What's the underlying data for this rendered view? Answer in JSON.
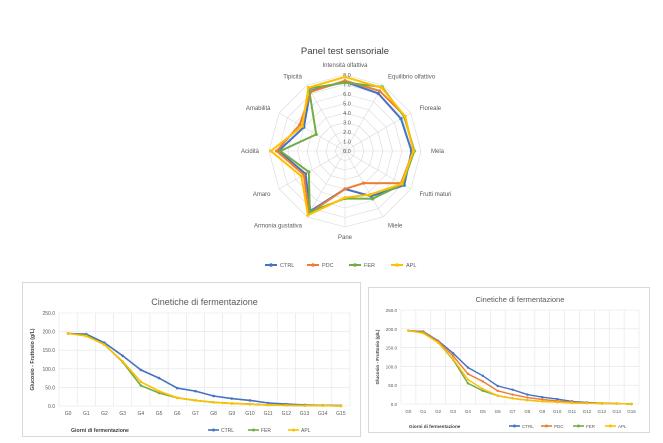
{
  "chart_data": [
    {
      "type": "radar",
      "title": "Panel test sensoriale",
      "categories": [
        "Intensità olfattiva",
        "Equilibrio olfattivo",
        "Floreale",
        "Mela",
        "Frutti maturi",
        "Miele",
        "Pane",
        "Armonia gustativa",
        "Amaro",
        "Acidità",
        "Amabilità",
        "Tipicità"
      ],
      "ticks": [
        "0.0",
        "1.0",
        "2.0",
        "3.0",
        "4.0",
        "5.0",
        "6.0",
        "7.0",
        "8.0"
      ],
      "rmax": 8,
      "legend_position": "bottom",
      "series": [
        {
          "name": "CTRL",
          "color": "#4472c4",
          "values": [
            7.3,
            7.0,
            6.8,
            7.0,
            7.2,
            5.5,
            4.0,
            7.3,
            4.8,
            7.0,
            5.0,
            7.3
          ]
        },
        {
          "name": "PDC",
          "color": "#ed7d31",
          "values": [
            7.4,
            7.3,
            7.3,
            7.2,
            6.8,
            3.9,
            4.0,
            7.6,
            5.0,
            7.2,
            5.5,
            7.2
          ]
        },
        {
          "name": "FER",
          "color": "#70ad47",
          "values": [
            7.2,
            7.8,
            7.2,
            7.3,
            7.0,
            5.8,
            5.0,
            7.4,
            4.4,
            6.8,
            3.5,
            7.6
          ]
        },
        {
          "name": "APL",
          "color": "#ffc000",
          "values": [
            7.8,
            7.7,
            7.3,
            7.2,
            6.9,
            5.3,
            4.9,
            7.8,
            5.3,
            7.8,
            5.2,
            7.7
          ]
        }
      ]
    },
    {
      "type": "line",
      "title": "Cinetiche di fermentazione",
      "xlabel": "Giorni di fermentazione",
      "ylabel": "Glucosio - Fruttosio (g/L)",
      "ylim": [
        0,
        250
      ],
      "yticks": [
        "0.0",
        "50.0",
        "100.0",
        "150.0",
        "200.0",
        "250.0"
      ],
      "categories": [
        "G0",
        "G1",
        "G2",
        "G3",
        "G4",
        "G5",
        "G6",
        "G7",
        "G8",
        "G9",
        "G10",
        "G11",
        "G12",
        "G13",
        "G14",
        "G15"
      ],
      "grid": true,
      "legend_position": "bottom-right",
      "series": [
        {
          "name": "CTRL",
          "color": "#4472c4",
          "values": [
            195,
            193,
            170,
            135,
            97,
            75,
            48,
            40,
            27,
            20,
            15,
            8,
            5,
            3,
            2,
            1
          ]
        },
        {
          "name": "FER",
          "color": "#70ad47",
          "values": [
            195,
            190,
            165,
            118,
            55,
            35,
            22,
            15,
            10,
            7,
            5,
            3,
            2,
            1,
            1,
            0
          ]
        },
        {
          "name": "APL",
          "color": "#ffc000",
          "values": [
            195,
            188,
            165,
            120,
            65,
            40,
            22,
            15,
            10,
            7,
            5,
            3,
            2,
            1,
            1,
            0
          ]
        }
      ]
    },
    {
      "type": "line",
      "title": "Cinetiche di fermentazione",
      "xlabel": "Giorni di fermentazione",
      "ylabel": "Glucosio - Fruttosio (g/L)",
      "ylim": [
        0,
        250
      ],
      "yticks": [
        "0.0",
        "50.0",
        "100.0",
        "150.0",
        "200.0",
        "250.0"
      ],
      "categories": [
        "G0",
        "G1",
        "G2",
        "G3",
        "G4",
        "G5",
        "G6",
        "G7",
        "G8",
        "G9",
        "G10",
        "G11",
        "G12",
        "G13",
        "G14",
        "G15"
      ],
      "grid": true,
      "legend_position": "bottom-right",
      "series": [
        {
          "name": "CTRL",
          "color": "#4472c4",
          "values": [
            195,
            193,
            168,
            135,
            97,
            75,
            48,
            38,
            25,
            18,
            13,
            7,
            4,
            2,
            1,
            0
          ]
        },
        {
          "name": "PDC",
          "color": "#ed7d31",
          "values": [
            195,
            192,
            166,
            128,
            80,
            60,
            35,
            25,
            17,
            12,
            8,
            5,
            3,
            2,
            1,
            0
          ]
        },
        {
          "name": "FER",
          "color": "#70ad47",
          "values": [
            195,
            190,
            163,
            118,
            55,
            35,
            22,
            15,
            10,
            7,
            5,
            3,
            2,
            1,
            1,
            0
          ]
        },
        {
          "name": "APL",
          "color": "#ffc000",
          "values": [
            195,
            188,
            163,
            120,
            65,
            40,
            22,
            15,
            10,
            7,
            5,
            3,
            2,
            1,
            1,
            0
          ]
        }
      ]
    }
  ]
}
